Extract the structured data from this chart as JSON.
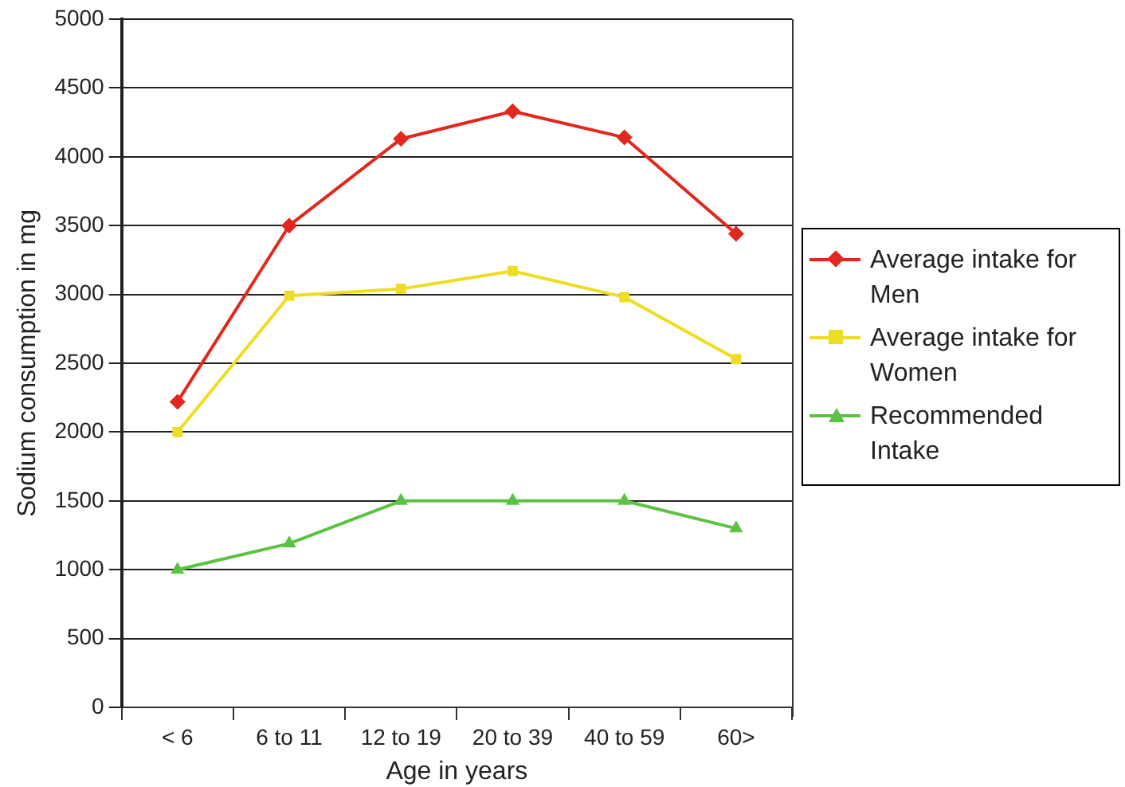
{
  "chart_data": {
    "type": "line",
    "xlabel": "Age in years",
    "ylabel": "Sodium consumption in mg",
    "categories": [
      "< 6",
      "6 to 11",
      "12 to 19",
      "20 to 39",
      "40 to 59",
      "60>"
    ],
    "series": [
      {
        "name": "Average intake for Men",
        "color": "#e0281e",
        "marker": "diamond",
        "values": [
          2220,
          3500,
          4130,
          4330,
          4140,
          3440
        ]
      },
      {
        "name": "Average intake for Women",
        "color": "#eedd22",
        "marker": "square",
        "values": [
          2000,
          2990,
          3040,
          3170,
          2980,
          2530
        ]
      },
      {
        "name": "Recommended Intake",
        "color": "#5cc244",
        "marker": "triangle",
        "values": [
          1000,
          1190,
          1500,
          1500,
          1500,
          1300
        ]
      }
    ],
    "ylim": [
      0,
      5000
    ],
    "yticks": [
      0,
      500,
      1000,
      1500,
      2000,
      2500,
      3000,
      3500,
      4000,
      4500,
      5000
    ],
    "grid": "y",
    "legend": "right",
    "line_style": "solid"
  }
}
